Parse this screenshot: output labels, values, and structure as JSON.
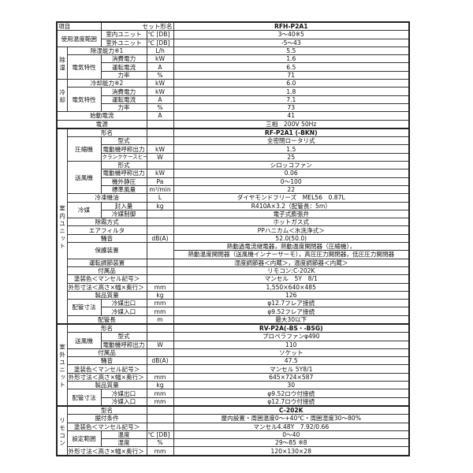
{
  "header": {
    "item": "項目",
    "set_model_label": "セット形名",
    "set_model": "RFH-P2A1"
  },
  "temp_range": {
    "label": "使用温度範囲",
    "indoor": "室内ユニット",
    "outdoor": "室外ユニット",
    "unit": "℃ [DB]",
    "indoor_value": "3～40※5",
    "outdoor_value": "-5～43"
  },
  "dehumid": {
    "section": "除湿",
    "capacity_label": "除湿能力※1",
    "capacity_unit": "L/h",
    "capacity": "5.5",
    "elec_label": "電気特性",
    "power_label": "消費電力",
    "power_unit": "kW",
    "power": "1.6",
    "current_label": "運転電流",
    "current_unit": "A",
    "current": "6.5",
    "pf_label": "力率",
    "pf_unit": "%",
    "pf": "71"
  },
  "cooling": {
    "section": "冷却",
    "capacity_label": "冷却能力※2",
    "capacity_unit": "kW",
    "capacity": "6.0",
    "elec_label": "電気特性",
    "power_label": "消費電力",
    "power_unit": "kW",
    "power": "1.8",
    "current_label": "運転電流",
    "current_unit": "A",
    "current": "7.1",
    "pf_label": "力率",
    "pf_unit": "%",
    "pf": "73"
  },
  "starting_current": {
    "label": "始動電流",
    "unit": "A",
    "value": "41"
  },
  "power_supply": {
    "label": "電源",
    "value": "三相　200V 50Hz"
  },
  "indoor": {
    "section": "室内ユニット",
    "rows": [
      {
        "label": "形名",
        "unit": "",
        "value": "RF-P2A1 (-BKN)"
      },
      {
        "group": "圧縮機",
        "label": "型式",
        "unit": "",
        "value": "全密閉ロータリ式"
      },
      {
        "label": "電動機呼称出力",
        "unit": "kW",
        "value": "1.5"
      },
      {
        "label": "クランクケースヒータ",
        "unit": "W",
        "value": "25"
      },
      {
        "group": "送風機",
        "label": "形式",
        "unit": "",
        "value": "シロッコファン"
      },
      {
        "label": "電動機呼称出力",
        "unit": "kW",
        "value": "0.06"
      },
      {
        "label": "機外静圧",
        "unit": "Pa",
        "value": "0～100"
      },
      {
        "label": "標準風量",
        "unit": "m³/min",
        "value": "22"
      },
      {
        "label": "冷凍機油",
        "unit": "L",
        "value": "ダイヤモンドフリーズ　MEL56　0.87L"
      },
      {
        "group": "冷媒",
        "label": "封入量",
        "unit": "kg",
        "value": "R410A×3.2（配管長：5m）"
      },
      {
        "label": "冷媒制御",
        "unit": "",
        "value": "電子式膨張弁"
      },
      {
        "label": "除霜方式",
        "unit": "",
        "value": "ホットガス式"
      },
      {
        "label": "エアフィルタ",
        "unit": "",
        "value": "PPハニカム＜水洗浄式＞"
      },
      {
        "label": "騒音",
        "unit": "dB(A)",
        "value": "52.0(50.0)"
      },
      {
        "label": "保護装置",
        "unit": "",
        "value": "熱動過電流継電器，熱動温度開閉器（圧縮機），",
        "value2": "熱動温度開閉器（送風機インナーサーモ），高圧圧力開閉器，低圧圧力開閉器"
      },
      {
        "label": "運転調節装置",
        "unit": "",
        "value": "湿度調節器＜内蔵＞，温度調節器＜内蔵＞"
      },
      {
        "label": "付属品",
        "unit": "",
        "value": "リモコン:C-202K"
      },
      {
        "label": "塗装色＜マンセル記号＞",
        "unit": "",
        "value": "マンセル　5Y　8/1"
      },
      {
        "label": "外形寸法＜高さ×幅×奥行＞",
        "unit": "mm",
        "value": "1,550×640×485"
      },
      {
        "label": "製品質量",
        "unit": "kg",
        "value": "126"
      },
      {
        "group": "配管寸法",
        "label": "冷媒出口",
        "unit": "mm",
        "value": "φ12.7フレア接続"
      },
      {
        "label": "冷媒入口",
        "unit": "mm",
        "value": "φ9.52フレア接続"
      },
      {
        "label": "配管長",
        "unit": "m",
        "value": "最大30以下"
      }
    ]
  },
  "outdoor": {
    "section": "室外ユニット",
    "rows": [
      {
        "label": "形名",
        "unit": "",
        "value": "RV-P2A(-BS・-BSG)"
      },
      {
        "group": "送風機",
        "label": "型式",
        "unit": "",
        "value": "プロペラファンφ490"
      },
      {
        "label": "電動機呼称出力",
        "unit": "W",
        "value": "110"
      },
      {
        "label": "付属品",
        "unit": "",
        "value": "ソケット"
      },
      {
        "label": "騒音",
        "unit": "dB(A)",
        "value": "47.5"
      },
      {
        "label": "塗装色＜マンセル記号＞",
        "unit": "",
        "value": "マンセル 5Y8/1"
      },
      {
        "label": "外形寸法＜高さ×幅×奥行＞",
        "unit": "mm",
        "value": "645×724×587"
      },
      {
        "label": "製品質量",
        "unit": "kg",
        "value": "30"
      },
      {
        "group": "配管寸法",
        "label": "冷媒出口",
        "unit": "mm",
        "value": "φ9.52ロウ付接続"
      },
      {
        "label": "冷媒入口",
        "unit": "mm",
        "value": "φ12.7ロウ付接続"
      }
    ]
  },
  "remote": {
    "section": "リモコン",
    "rows": [
      {
        "label": "型名",
        "unit": "",
        "value": "C-202K"
      },
      {
        "label": "据付条件",
        "unit": "",
        "value": "屋内設置・周囲温度0～+40℃・周囲湿度30～80%"
      },
      {
        "label": "塗装色＜マンセル記号＞",
        "unit": "",
        "value": "マンセル4.48Y　7.92/0.66"
      },
      {
        "group": "設定範囲",
        "label": "温度",
        "unit": "℃ [DB]",
        "value": "0～40"
      },
      {
        "label": "湿度",
        "unit": "%",
        "value": "29～85 ※8"
      },
      {
        "label": "外形寸法＜高さ×幅×奥行＞",
        "unit": "mm",
        "value": "120×130×28"
      }
    ]
  }
}
